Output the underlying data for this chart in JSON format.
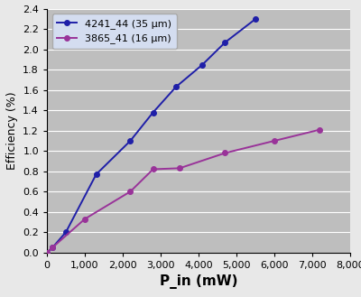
{
  "series1_label": "4241_44 (35 μm)",
  "series2_label": "3865_41 (16 μm)",
  "series1_color": "#1f1fa8",
  "series2_color": "#993399",
  "series1_x": [
    0,
    150,
    500,
    1300,
    2200,
    2800,
    3400,
    4100,
    4700,
    5500
  ],
  "series1_y": [
    0.0,
    0.05,
    0.2,
    0.77,
    1.1,
    1.38,
    1.63,
    1.85,
    2.07,
    2.3
  ],
  "series2_x": [
    0,
    150,
    1000,
    2200,
    2800,
    3500,
    4700,
    6000,
    7200
  ],
  "series2_y": [
    0.0,
    0.05,
    0.33,
    0.6,
    0.82,
    0.83,
    0.98,
    1.1,
    1.21
  ],
  "xlabel": "P_in (mW)",
  "ylabel": "Efficiency (%)",
  "xlim": [
    0,
    8000
  ],
  "ylim": [
    0.0,
    2.4
  ],
  "xticks": [
    0,
    1000,
    2000,
    3000,
    4000,
    5000,
    6000,
    7000,
    8000
  ],
  "yticks": [
    0.0,
    0.2,
    0.4,
    0.6,
    0.8,
    1.0,
    1.2,
    1.4,
    1.6,
    1.8,
    2.0,
    2.2,
    2.4
  ],
  "plot_bg_color": "#bebebe",
  "fig_bg_color": "#e8e8e8",
  "legend_facecolor": "#d4ddf0",
  "legend_edgecolor": "#aaaaaa",
  "marker": "o",
  "markersize": 4,
  "linewidth": 1.4,
  "grid_color": "#ffffff",
  "grid_linewidth": 0.8,
  "xlabel_fontsize": 11,
  "ylabel_fontsize": 9,
  "tick_fontsize": 8,
  "legend_fontsize": 8
}
